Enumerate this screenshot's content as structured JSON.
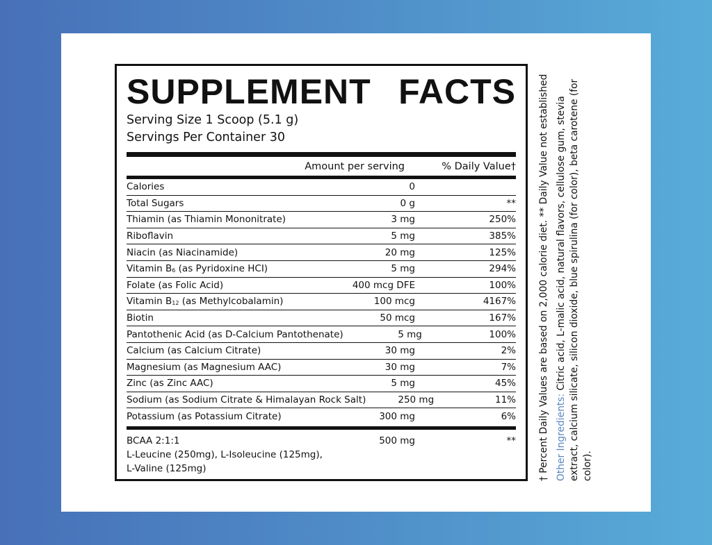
{
  "label": {
    "title_left": "SUPPLEMENT",
    "title_right": "FACTS",
    "serving_size": "Serving Size 1 Scoop (5.1 g)",
    "servings_per_container": "Servings Per Container 30",
    "col_amount": "Amount per serving",
    "col_dv": "% Daily Value†",
    "rows": [
      {
        "name": "Calories",
        "amount": "0",
        "dv": ""
      },
      {
        "name": "Total Sugars",
        "amount": "0 g",
        "dv": "**"
      },
      {
        "name": "Thiamin (as Thiamin Mononitrate)",
        "amount": "3 mg",
        "dv": "250%"
      },
      {
        "name": "Riboflavin",
        "amount": "5 mg",
        "dv": "385%"
      },
      {
        "name": "Niacin (as Niacinamide)",
        "amount": "20 mg",
        "dv": "125%"
      },
      {
        "name": "Vitamin B6 (as Pyridoxine HCI)",
        "amount": "5 mg",
        "dv": "294%"
      },
      {
        "name": "Folate (as Folic Acid)",
        "amount": "400 mcg DFE",
        "dv": "100%"
      },
      {
        "name": "Vitamin B12 (as Methylcobalamin)",
        "amount": "100 mcg",
        "dv": "4167%"
      },
      {
        "name": "Biotin",
        "amount": "50 mcg",
        "dv": "167%"
      },
      {
        "name": "Pantothenic Acid (as D-Calcium Pantothenate)",
        "amount": "5 mg",
        "dv": "100%"
      },
      {
        "name": "Calcium (as Calcium Citrate)",
        "amount": "30 mg",
        "dv": "2%"
      },
      {
        "name": "Magnesium (as Magnesium AAC)",
        "amount": "30 mg",
        "dv": "7%"
      },
      {
        "name": "Zinc (as Zinc AAC)",
        "amount": "5 mg",
        "dv": "45%"
      },
      {
        "name": "Sodium (as Sodium Citrate & Himalayan Rock Salt)",
        "amount": "250 mg",
        "dv": "11%"
      },
      {
        "name": "Potassium (as Potassium Citrate)",
        "amount": "300 mg",
        "dv": "6%"
      }
    ],
    "bcaa": {
      "name": "BCAA 2:1:1",
      "detail": "L-Leucine (250mg), L-Isoleucine (125mg),",
      "detail2": "L-Valine (125mg)",
      "amount": "500 mg",
      "dv": "**"
    }
  },
  "side": {
    "footnote": "† Percent Daily Values are based on 2,000 calorie diet. ** Daily Value not established",
    "other_label": "Other Ingredients:",
    "other_text": " Citric acid, L-malic acid, natural flavors, cellulose gum, stevia extract, calcium silicate, silicon dioxide, blue spirulina (for color), beta carotene (for color)."
  },
  "colors": {
    "accent": "#5b86c0",
    "bg_left": "#4770b8",
    "bg_right": "#58acd8"
  }
}
